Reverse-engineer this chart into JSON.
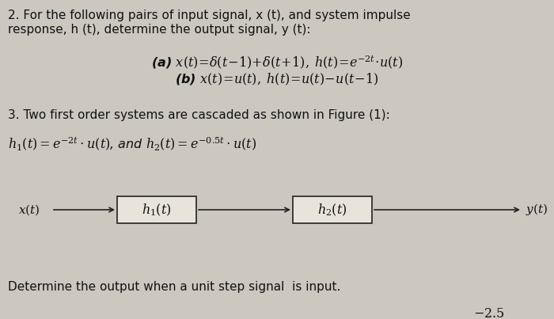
{
  "bg_color": "#ccc8c0",
  "text_color": "#111111",
  "fig_width": 7.0,
  "fig_height": 4.03,
  "line1": "2. For the following pairs of input signal, x (t), and system impulse",
  "line2": "response, h (t), determine the output signal, y (t):",
  "eq_a": "(a) $x(t)\\!=\\!\\delta(t\\!-\\!1)\\!+\\!\\delta(t\\!+\\!1),\\; h(t)\\!=\\!e^{-2t}\\!\\cdot\\! u(t)$",
  "eq_b": "(b) $x(t)\\!=\\!u(t),\\; h(t)\\!=\\!u(t)\\!-\\!u(t\\!-\\!1)$",
  "line3": "3. Two first order systems are cascaded as shown in Figure (1):",
  "h_eq_left": "$h_1(t) = e^{-2t}\\cdot u(t)$, and $h_2(t) = e^{-0.5t}\\cdot u(t)$",
  "block1_label": "$h_1(t)$",
  "block2_label": "$h_2(t)$",
  "x_label": "$x(t)$",
  "y_label": "$y(t)$",
  "bottom_text": "Determine the output when a unit step signal  is input.",
  "corner_text": "$-2.5$",
  "box_color": "#e8e4dc",
  "box_edge_color": "#222222",
  "arrow_color": "#222222"
}
